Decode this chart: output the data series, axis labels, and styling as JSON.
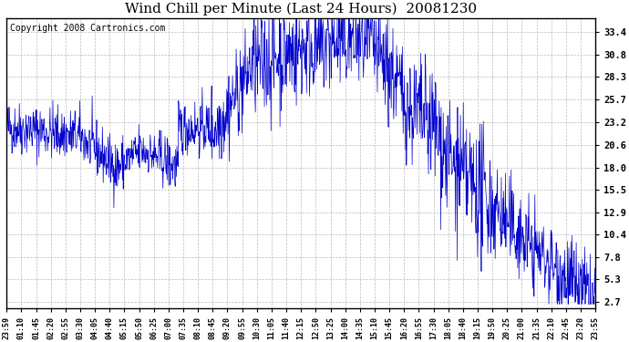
{
  "title": "Wind Chill per Minute (Last 24 Hours)  20081230",
  "copyright_text": "Copyright 2008 Cartronics.com",
  "y_ticks": [
    2.7,
    5.3,
    7.8,
    10.4,
    12.9,
    15.5,
    18.0,
    20.6,
    23.2,
    25.7,
    28.3,
    30.8,
    33.4
  ],
  "x_tick_labels": [
    "23:59",
    "01:10",
    "01:45",
    "02:20",
    "02:55",
    "03:30",
    "04:05",
    "04:40",
    "05:15",
    "05:50",
    "06:25",
    "07:00",
    "07:35",
    "08:10",
    "08:45",
    "09:20",
    "09:55",
    "10:30",
    "11:05",
    "11:40",
    "12:15",
    "12:50",
    "13:25",
    "14:00",
    "14:35",
    "15:10",
    "15:45",
    "16:20",
    "16:55",
    "17:30",
    "18:05",
    "18:40",
    "19:15",
    "19:50",
    "20:25",
    "21:00",
    "21:35",
    "22:10",
    "22:45",
    "23:20",
    "23:55"
  ],
  "line_color": "#0000cc",
  "background_color": "#ffffff",
  "grid_color": "#aaaaaa",
  "title_fontsize": 11,
  "copyright_fontsize": 7,
  "ylim_min": 2.0,
  "ylim_max": 35.0
}
